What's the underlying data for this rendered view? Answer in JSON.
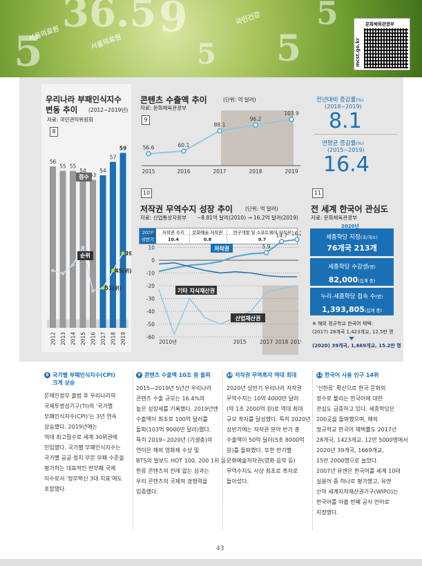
{
  "hero": {
    "numbers": [
      "36.5",
      "5",
      "9",
      "5",
      "5",
      "5"
    ],
    "tags": [
      "서울의료원",
      "서울의료원",
      "국민건강"
    ],
    "qr_label": "문화체육관광부",
    "qr_url": "mcst.go.kr",
    "colors": {
      "leaf_light": "#d9e6a3",
      "leaf_dark": "#42701a"
    }
  },
  "chart8": {
    "badge": "8",
    "title1": "우리나라 부패인식지수",
    "title2": "변동 추이",
    "title2_note": "(2012~2019년)",
    "source": "자료: 국민권익위원회",
    "legend_score": "점수",
    "legend_rank": "순위",
    "rank_labels": [
      "51(위)",
      "45(위)",
      "39(위)"
    ],
    "chart_data": {
      "type": "bar",
      "categories": [
        "2012",
        "2013",
        "2014",
        "2015",
        "2016",
        "2017",
        "2018",
        "2019"
      ],
      "series": [
        {
          "name": "점수",
          "values": [
            56,
            55,
            55,
            54,
            53,
            54,
            57,
            59
          ]
        },
        {
          "name": "순위",
          "values": [
            45,
            46,
            43,
            37,
            52,
            51,
            45,
            39
          ]
        }
      ]
    },
    "colors": {
      "bar_gray": "#9a9a9a",
      "bar_blue": "#1a6fb5"
    }
  },
  "chart9": {
    "badge": "9",
    "title": "콘텐츠 수출액 추이",
    "unit": "(단위: 억 달러)",
    "source": "자료: 문화체육관광부",
    "chart_data": {
      "type": "line",
      "x": [
        "2015",
        "2016",
        "2017",
        "2018",
        "2019"
      ],
      "y": [
        56.6,
        60.1,
        88.1,
        96.2,
        103.9
      ]
    }
  },
  "stats": {
    "growth_label": "전년대비 증감률",
    "growth_unit": "(%)",
    "growth_period": "(2018~2019)",
    "growth_value": "8.1",
    "avg_label": "연평균 증감률",
    "avg_unit": "(%)",
    "avg_period": "(2015~2019)",
    "avg_value": "16.4"
  },
  "chart10": {
    "badge": "10",
    "title": "저작권 무역수지 성장 추이",
    "unit": "(단위: 억 달러)",
    "source": "자료: 산업통상자원부",
    "source_note": "~8.81억 달러(2010) → 16.2억 달러(2019)",
    "table": {
      "period1": "2020",
      "period2": "상반기",
      "headers": [
        "저작권 수지",
        "문화예술 저작권",
        "연구개발 및 소프트웨어 저작권"
      ],
      "values": [
        "10.4",
        "0.8",
        "9.7"
      ]
    },
    "labels": {
      "copyright": "저작권",
      "ip": "기타 지식재산권",
      "industrial": "산업재산권"
    },
    "point_labels": [
      "5.9",
      "14.7",
      "16.2"
    ],
    "chart_data": {
      "type": "line",
      "x": [
        "2010년",
        "2015",
        "2017",
        "2018",
        "2019"
      ],
      "yticks": [
        "20",
        "10",
        "0",
        "-10",
        "-20",
        "-30",
        "-40",
        "-50",
        "-60"
      ],
      "ylim": [
        -60,
        20
      ]
    }
  },
  "chart11": {
    "badge": "11",
    "title": "전 세계 한국어 관심도",
    "source": "자료: 문화체육관광부",
    "year_tag": "2020년",
    "items": [
      {
        "label": "세종학당 지정",
        "unit": "(국/개소)",
        "value": "76개국 213개"
      },
      {
        "label": "세종학당 수강생",
        "unit": "(명)",
        "value": "82,000",
        "value_unit": "(집계 중)"
      },
      {
        "label": "누리-세종학당 접속 수",
        "unit": "(명)",
        "value": "1,393,805",
        "value_unit": "(집계 중)"
      }
    ],
    "note1": "※ 해외 정규학교 한국어 채택:",
    "note2": "(2017) 28개국 1,423개교, 12.5만 명",
    "note3": "(2020) 39개국, 1,669개교, 15.2만 명"
  },
  "columns": [
    {
      "num": "8",
      "head1": "국가별 부패인식지수(CPI)",
      "head2": "크게 상승",
      "lines": [
        "문재인정부 출범 후 우리나라의",
        "국제투명성기구(TI)의 '국가별",
        "부패인식지수(CPI)'는 3년 연속",
        "상승했다. 2019년에는",
        "역대 최고점수로 세계 30위권에",
        "진입했다. 국가별 부패인식지수는",
        "국가별 공공·정치 부문 부패 수준을",
        "평가하는 대표적인 반부패 국제",
        "지수로서 '정부혁신 3대 지표'에도",
        "포함됐다."
      ]
    },
    {
      "num": "9",
      "head1": "콘텐츠 수출액 10조 원 돌파",
      "head2": "",
      "lines": [
        "2015~2019년 5년간 우리나라",
        "콘텐츠 수출 규모는 16.4%의",
        "높은 성장세를 기록했다. 2019년엔",
        "수출액이 최초로 100억 달러를",
        "돌파(103억 9000만 달러)했다.",
        "특히 2019~2020년 (기생충)의",
        "연이은 해외 영화제 수상 및",
        "BTS의 빌보드 HOT 100, 200 1위 등",
        "한류 콘텐츠의 전례 없는 성과는",
        "우리 콘텐츠의 국제적 경쟁력을",
        "입증했다."
      ]
    },
    {
      "num": "10",
      "head1": "저작권 무역흑자 역대 최대",
      "head2": "",
      "lines": [
        "2020년 상반기 우리나라 저작권",
        "무역수지는 10억 4000만 달러",
        "(약 1조 2000억 원)로 역대 최대",
        "규모 흑자를 달성했다. 특히 2020년",
        "상반기에는 저작권 분야 반기 총",
        "수출액이 50억 달러(5조 8000억",
        "원)를 돌파했다. 또한 반기별",
        "문화예술저작권(영화·음악 등)",
        "무역수지도 사상 최초로 흑자로",
        "돌아섰다."
      ]
    },
    {
      "num": "11",
      "head1": "한국어 사용 인구 14위",
      "head2": "",
      "lines": [
        "'신한류' 확산으로 한국 문화의",
        "정수로 불리는 한국어에 대한",
        "관심도 급증하고 있다. 세종학당은",
        "200곳을 돌파했으며, 해외",
        "정규학교 한국어 채택률도 2017년",
        "28개국, 1423개교, 12만 5000명에서",
        "2020년 39개국, 1669개교,",
        "15만 2000명으로 늘었다.",
        "2007년 유엔은 한국어를 세계 10대",
        "실용어 중 하나로 평가했고, 유엔",
        "산하 세계지적재산권기구(WIPO)는",
        "한국어를 아홉 번째 공식 언어로",
        "지정했다."
      ]
    }
  ],
  "page_number": "43"
}
